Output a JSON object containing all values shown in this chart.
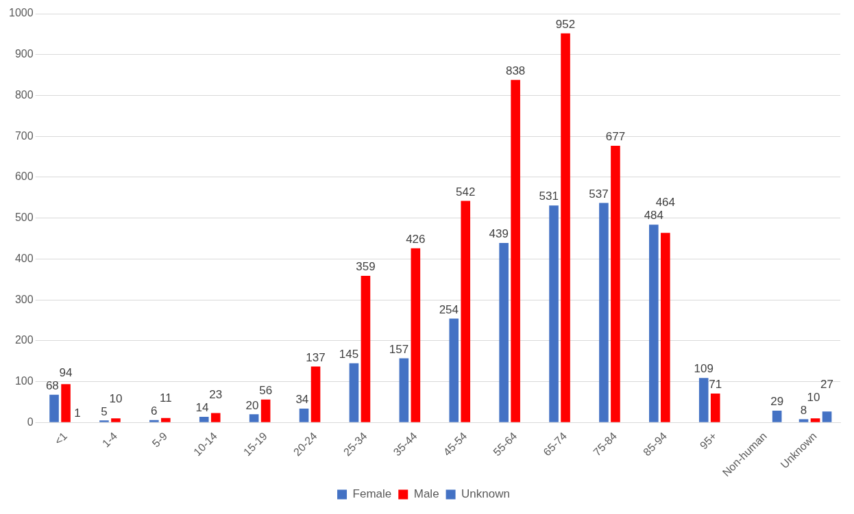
{
  "chart_data": {
    "type": "bar",
    "categories": [
      "<1",
      "1-4",
      "5-9",
      "10-14",
      "15-19",
      "20-24",
      "25-34",
      "35-44",
      "45-54",
      "55-64",
      "65-74",
      "75-84",
      "85-94",
      "95+",
      "Non-human",
      "Unknown"
    ],
    "series": [
      {
        "name": "Female",
        "color": "#4472c4",
        "values": [
          68,
          5,
          6,
          14,
          20,
          34,
          145,
          157,
          254,
          439,
          531,
          537,
          484,
          109,
          null,
          8
        ]
      },
      {
        "name": "Male",
        "color": "#ff0000",
        "values": [
          94,
          10,
          11,
          23,
          56,
          137,
          359,
          426,
          542,
          838,
          952,
          677,
          464,
          71,
          null,
          10
        ]
      },
      {
        "name": "Unknown",
        "color": "#4472c4",
        "values": [
          1,
          null,
          null,
          null,
          null,
          null,
          null,
          null,
          null,
          null,
          null,
          null,
          null,
          null,
          29,
          27
        ]
      }
    ],
    "ylim": [
      0,
      1000
    ],
    "yticks": [
      0,
      100,
      200,
      300,
      400,
      500,
      600,
      700,
      800,
      900,
      1000
    ],
    "grid": "y",
    "legend": "bottom",
    "data_labels": true
  }
}
